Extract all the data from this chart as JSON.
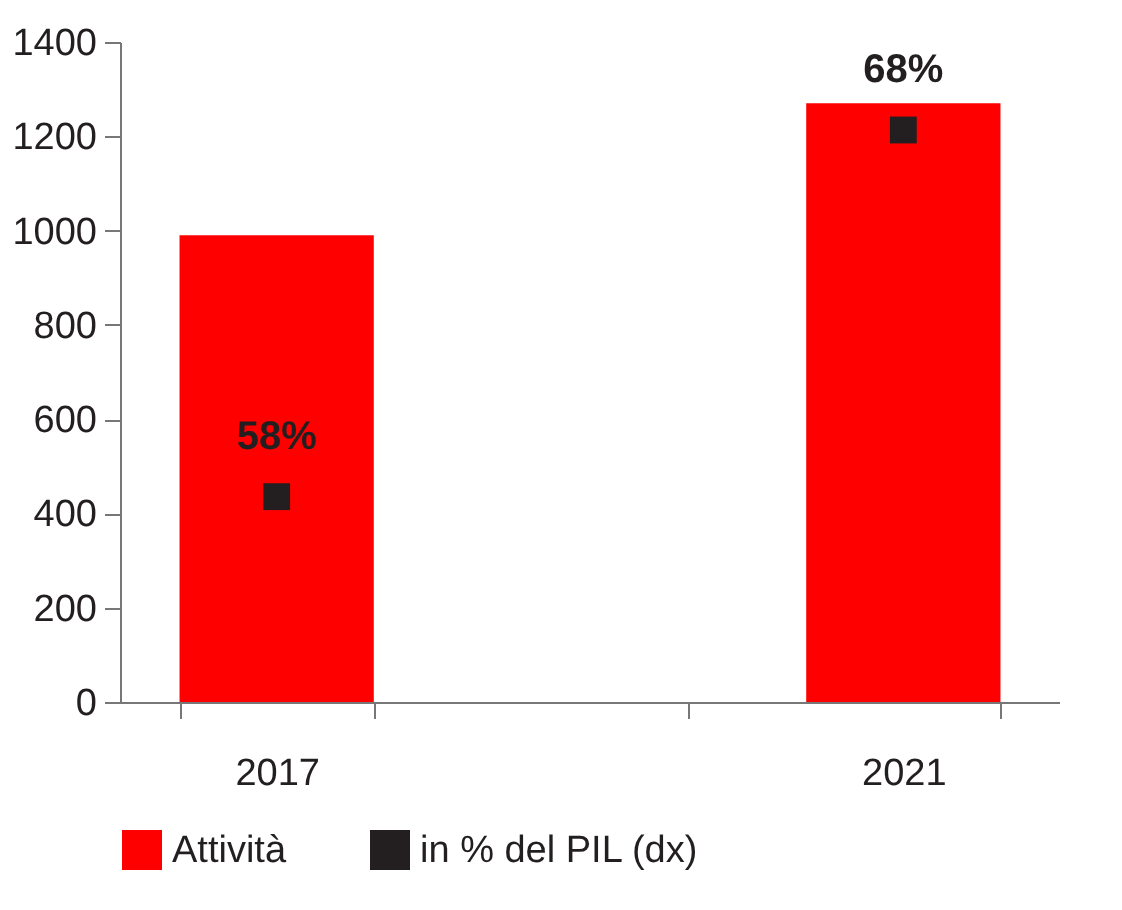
{
  "chart_data": {
    "type": "bar",
    "categories": [
      "2017",
      null,
      "2021"
    ],
    "series": [
      {
        "name": "Attività",
        "color": "#ff0000",
        "values": [
          990,
          null,
          1270
        ]
      },
      {
        "name": "in % del PIL (dx)",
        "type": "scatter",
        "color": "#231f20",
        "axis": "y2",
        "marker": "square",
        "values": [
          58,
          null,
          68
        ],
        "value_labels": [
          "58%",
          null,
          "68%"
        ]
      }
    ],
    "ylim": [
      0,
      1400
    ],
    "yticks": [
      0,
      200,
      400,
      600,
      800,
      1000,
      1200,
      1400
    ],
    "y2lim": [
      52.4,
      70.4
    ],
    "grid": false,
    "legend": "bottom"
  }
}
